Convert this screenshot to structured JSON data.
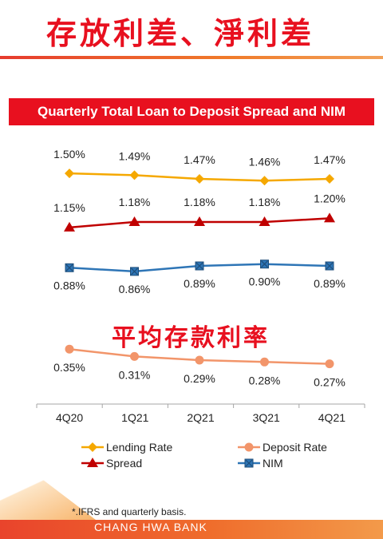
{
  "page": {
    "title": "存放利差、淨利差",
    "subtitle_overlay": "平均存款利率",
    "footnote": "*.IFRS and quarterly basis.",
    "footer": "CHANG HWA BANK"
  },
  "colors": {
    "brand_red": "#e8101f",
    "lending": "#f5a800",
    "deposit": "#f2956a",
    "spread": "#c00000",
    "nim": "#2e75b6"
  },
  "chart_data": {
    "type": "line",
    "title": "Quarterly Total Loan to Deposit Spread and NIM",
    "categories": [
      "4Q20",
      "1Q21",
      "2Q21",
      "3Q21",
      "4Q21"
    ],
    "unit": "%",
    "grid": false,
    "legend_position": "bottom",
    "series": [
      {
        "name": "Lending Rate",
        "values": [
          1.5,
          1.49,
          1.47,
          1.46,
          1.47
        ],
        "labels": [
          "1.50%",
          "1.49%",
          "1.47%",
          "1.46%",
          "1.47%"
        ],
        "marker": "diamond",
        "color": "#f5a800"
      },
      {
        "name": "Spread",
        "values": [
          1.15,
          1.18,
          1.18,
          1.18,
          1.2
        ],
        "labels": [
          "1.15%",
          "1.18%",
          "1.18%",
          "1.18%",
          "1.20%"
        ],
        "marker": "triangle",
        "color": "#c00000"
      },
      {
        "name": "NIM",
        "values": [
          0.88,
          0.86,
          0.89,
          0.9,
          0.89
        ],
        "labels": [
          "0.88%",
          "0.86%",
          "0.89%",
          "0.90%",
          "0.89%"
        ],
        "marker": "square-x",
        "color": "#2e75b6"
      },
      {
        "name": "Deposit Rate",
        "values": [
          0.35,
          0.31,
          0.29,
          0.28,
          0.27
        ],
        "labels": [
          "0.35%",
          "0.31%",
          "0.29%",
          "0.28%",
          "0.27%"
        ],
        "marker": "circle",
        "color": "#f2956a"
      }
    ],
    "legend": [
      {
        "name": "Lending Rate",
        "marker": "diamond",
        "color": "#f5a800"
      },
      {
        "name": "Deposit Rate",
        "marker": "circle",
        "color": "#f2956a"
      },
      {
        "name": "Spread",
        "marker": "triangle",
        "color": "#c00000"
      },
      {
        "name": "NIM",
        "marker": "square-x",
        "color": "#2e75b6"
      }
    ]
  }
}
